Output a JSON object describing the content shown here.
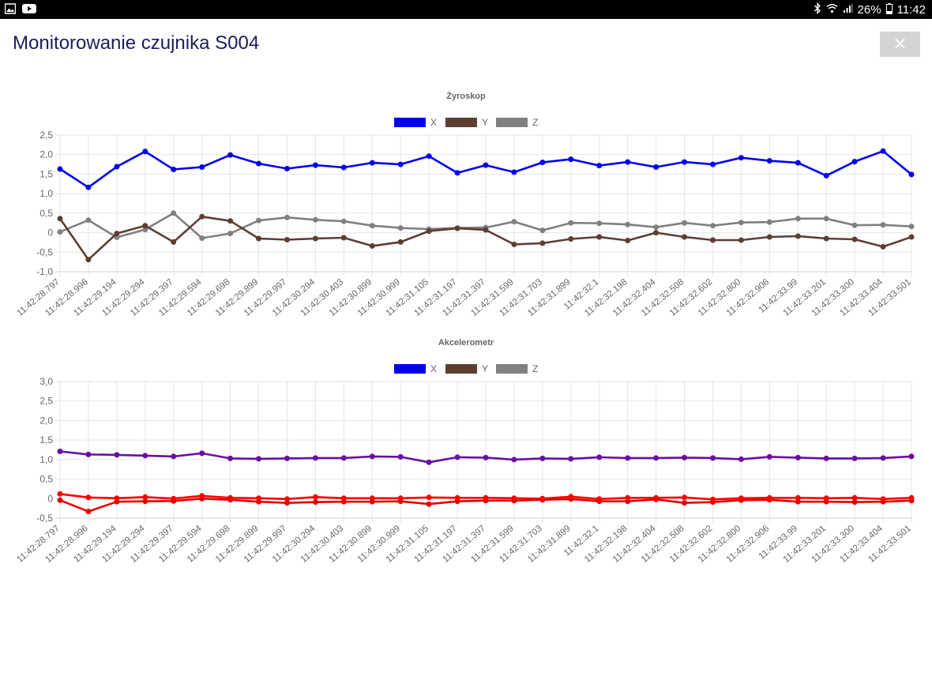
{
  "status_bar": {
    "battery": "26%",
    "time": "11:42",
    "icons": [
      "gallery-icon",
      "youtube-icon",
      "bluetooth-icon",
      "wifi-icon",
      "signal-icon",
      "battery-icon"
    ]
  },
  "header": {
    "title": "Monitorowanie czujnika S004",
    "close_label": "×"
  },
  "colors": {
    "gyro_x": "#0000ee",
    "gyro_y": "#5d3e33",
    "gyro_z": "#808080",
    "acc_x": "#6a0fa5",
    "acc_y": "#ff0000",
    "acc_z": "#e50000"
  },
  "chart_data": [
    {
      "type": "line",
      "title": "Żyroskop",
      "legend_position": "top-center",
      "grid": true,
      "ylim": [
        -1.0,
        2.5
      ],
      "yticks": [
        "-1,0",
        "-0,5",
        "0",
        "0,5",
        "1,0",
        "1,5",
        "2,0",
        "2,5"
      ],
      "x": [
        "11:42:28.797",
        "11:42:28.996",
        "11:42:29.194",
        "11:42:29.294",
        "11:42:29.397",
        "11:42:29.594",
        "11:42:29.698",
        "11:42:29.899",
        "11:42:29.997",
        "11:42:30.294",
        "11:42:30.403",
        "11:42:30.899",
        "11:42:30.999",
        "11:42:31.105",
        "11:42:31.197",
        "11:42:31.397",
        "11:42:31.599",
        "11:42:31.703",
        "11:42:31.899",
        "11:42:32.1",
        "11:42:32.198",
        "11:42:32.404",
        "11:42:32.508",
        "11:42:32.602",
        "11:42:32.800",
        "11:42:32.906",
        "11:42:33.99",
        "11:42:33.201",
        "11:42:33.300",
        "11:42:33.404",
        "11:42:33.501"
      ],
      "series": [
        {
          "name": "X",
          "color": "#0000ee",
          "values": [
            1.63,
            1.16,
            1.69,
            2.08,
            1.62,
            1.68,
            1.99,
            1.77,
            1.64,
            1.73,
            1.67,
            1.79,
            1.75,
            1.96,
            1.53,
            1.73,
            1.55,
            1.8,
            1.88,
            1.72,
            1.81,
            1.68,
            1.81,
            1.75,
            1.92,
            1.84,
            1.79,
            1.46,
            1.82,
            2.09,
            1.49
          ]
        },
        {
          "name": "Y",
          "color": "#5d3e33",
          "values": [
            0.36,
            -0.69,
            -0.02,
            0.18,
            -0.24,
            0.41,
            0.3,
            -0.15,
            -0.18,
            -0.15,
            -0.13,
            -0.34,
            -0.24,
            0.04,
            0.11,
            0.07,
            -0.3,
            -0.27,
            -0.16,
            -0.11,
            -0.2,
            0.0,
            -0.11,
            -0.19,
            -0.19,
            -0.11,
            -0.09,
            -0.15,
            -0.17,
            -0.36,
            -0.11
          ]
        },
        {
          "name": "Z",
          "color": "#808080",
          "values": [
            0.02,
            0.32,
            -0.12,
            0.08,
            0.5,
            -0.14,
            -0.02,
            0.31,
            0.39,
            0.33,
            0.29,
            0.18,
            0.12,
            0.09,
            0.12,
            0.13,
            0.28,
            0.06,
            0.25,
            0.24,
            0.21,
            0.14,
            0.25,
            0.18,
            0.26,
            0.27,
            0.36,
            0.36,
            0.19,
            0.2,
            0.16
          ]
        }
      ]
    },
    {
      "type": "line",
      "title": "Akcelerometr",
      "legend_position": "top-center",
      "grid": true,
      "ylim": [
        -0.5,
        3.0
      ],
      "yticks": [
        "-0,5",
        "0",
        "0,5",
        "1,0",
        "1,5",
        "2,0",
        "2,5",
        "3,0"
      ],
      "x": [
        "11:42:28.797",
        "11:42:28.996",
        "11:42:29.194",
        "11:42:29.294",
        "11:42:29.397",
        "11:42:29.594",
        "11:42:29.698",
        "11:42:29.899",
        "11:42:29.997",
        "11:42:30.294",
        "11:42:30.403",
        "11:42:30.899",
        "11:42:30.999",
        "11:42:31.105",
        "11:42:31.197",
        "11:42:31.397",
        "11:42:31.599",
        "11:42:31.703",
        "11:42:31.899",
        "11:42:32.1",
        "11:42:32.198",
        "11:42:32.404",
        "11:42:32.508",
        "11:42:32.602",
        "11:42:32.800",
        "11:42:32.906",
        "11:42:33.99",
        "11:42:33.201",
        "11:42:33.300",
        "11:42:33.404",
        "11:42:33.501"
      ],
      "legend": [
        {
          "name": "X",
          "color": "#0000ee"
        },
        {
          "name": "Y",
          "color": "#5d3e33"
        },
        {
          "name": "Z",
          "color": "#808080"
        }
      ],
      "series": [
        {
          "name": "X",
          "color": "#6a0fa5",
          "values": [
            1.21,
            1.13,
            1.12,
            1.1,
            1.08,
            1.16,
            1.03,
            1.02,
            1.03,
            1.04,
            1.04,
            1.08,
            1.07,
            0.93,
            1.06,
            1.05,
            1.0,
            1.03,
            1.02,
            1.06,
            1.04,
            1.04,
            1.05,
            1.04,
            1.01,
            1.07,
            1.05,
            1.03,
            1.03,
            1.04,
            1.08
          ]
        },
        {
          "name": "Y",
          "color": "#ff0000",
          "values": [
            0.12,
            0.03,
            0.01,
            0.04,
            0.0,
            0.07,
            0.02,
            0.01,
            -0.01,
            0.04,
            0.01,
            0.01,
            0.01,
            0.03,
            0.02,
            0.02,
            0.01,
            0.0,
            0.05,
            -0.01,
            0.02,
            0.02,
            0.03,
            -0.02,
            0.01,
            0.02,
            0.02,
            0.01,
            0.02,
            -0.01,
            0.02
          ]
        },
        {
          "name": "Z",
          "color": "#e50000",
          "values": [
            -0.04,
            -0.33,
            -0.08,
            -0.07,
            -0.06,
            0.0,
            -0.03,
            -0.08,
            -0.11,
            -0.09,
            -0.08,
            -0.08,
            -0.07,
            -0.14,
            -0.07,
            -0.05,
            -0.05,
            -0.03,
            -0.01,
            -0.07,
            -0.07,
            -0.02,
            -0.11,
            -0.09,
            -0.04,
            -0.03,
            -0.08,
            -0.08,
            -0.09,
            -0.08,
            -0.05
          ]
        }
      ]
    }
  ]
}
